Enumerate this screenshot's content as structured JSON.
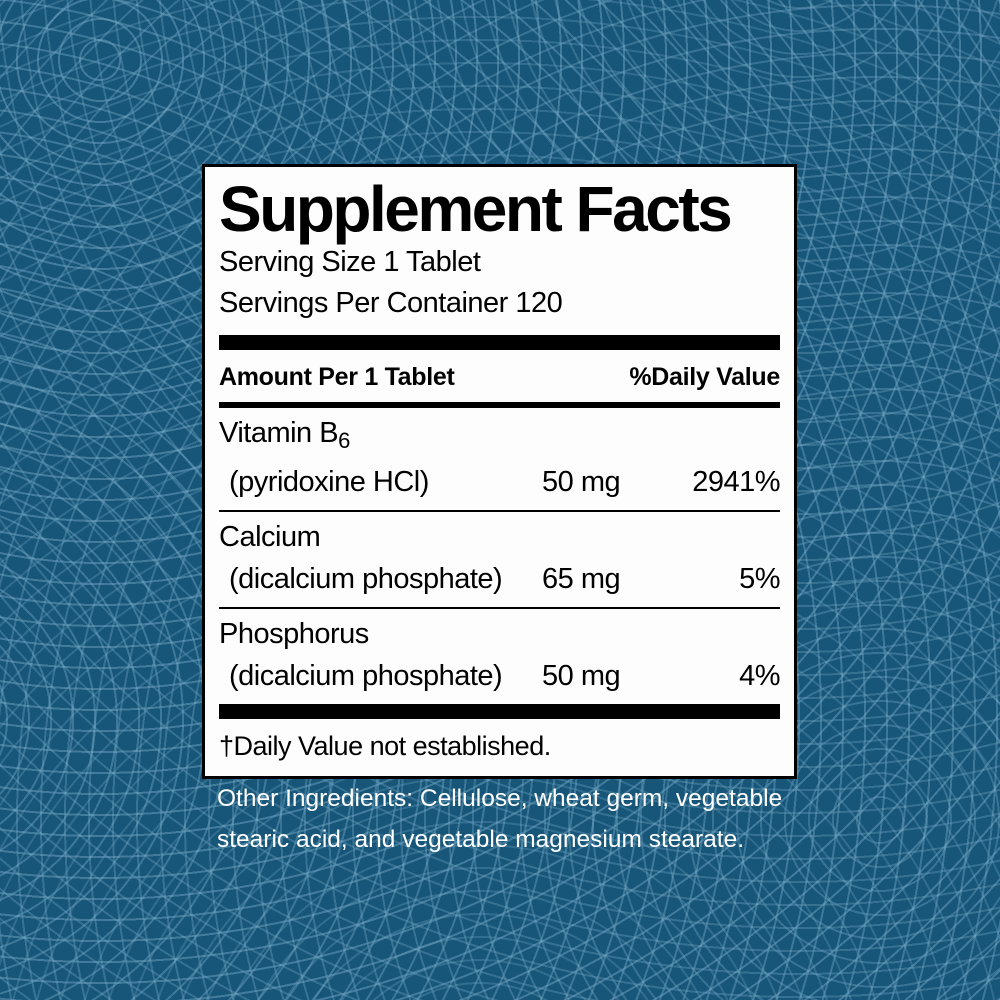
{
  "colors": {
    "background": "#175679",
    "pattern_line": "#7dafcd",
    "panel_background": "#fdfdfd",
    "panel_border": "#000000",
    "panel_text": "#000000",
    "ingredients_text": "#ffffff"
  },
  "panel": {
    "title": "Supplement Facts",
    "serving_size": "Serving Size 1 Tablet",
    "servings_per_container": "Servings Per Container 120",
    "columns": {
      "amount_header": "Amount Per 1 Tablet",
      "daily_value_header": "%Daily Value"
    },
    "rows": [
      {
        "name": "Vitamin B",
        "name_subscript": "6",
        "form": "(pyridoxine HCl)",
        "amount": "50 mg",
        "daily_value": "2941%"
      },
      {
        "name": "Calcium",
        "form": "(dicalcium phosphate)",
        "amount": "65 mg",
        "daily_value": "5%"
      },
      {
        "name": "Phosphorus",
        "form": "(dicalcium phosphate)",
        "amount": "50 mg",
        "daily_value": "4%"
      }
    ],
    "footnote": "†Daily Value not established."
  },
  "other_ingredients": "Other Ingredients: Cellulose, wheat germ, vegetable stearic acid, and vegetable magnesium stearate."
}
